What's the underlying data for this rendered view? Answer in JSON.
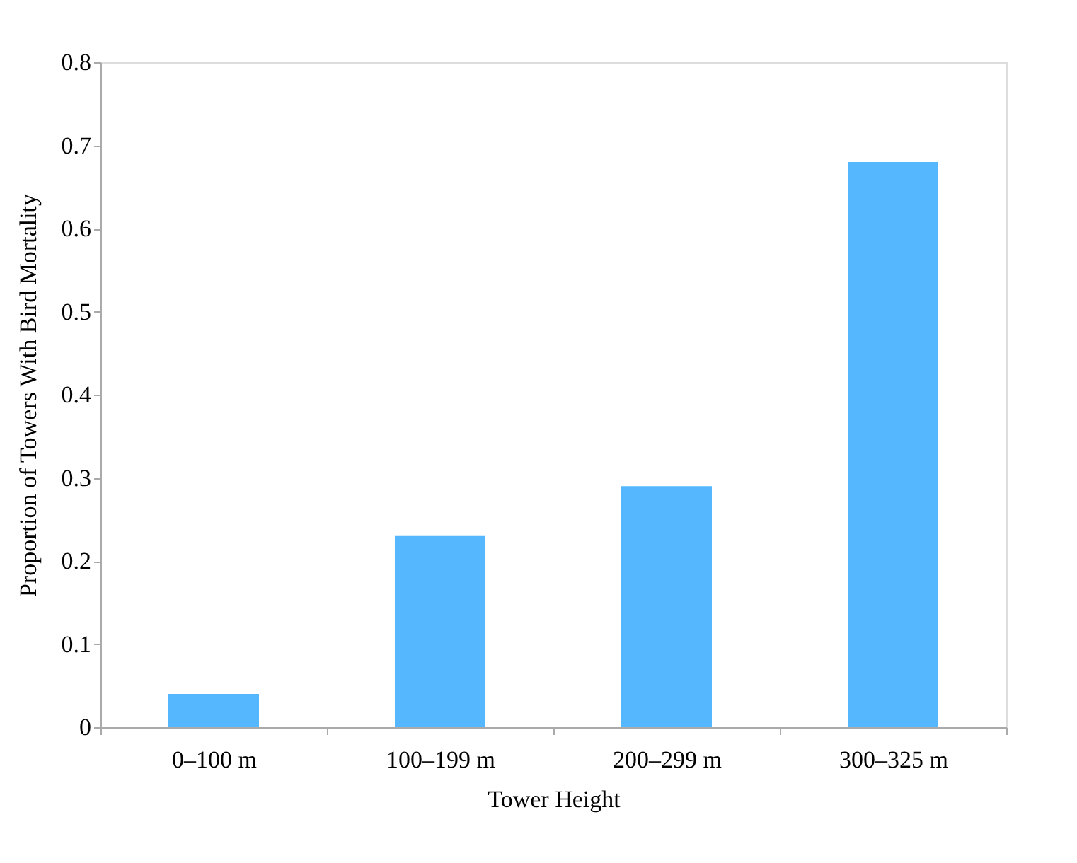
{
  "chart_data": {
    "type": "bar",
    "xlabel": "Tower Height",
    "ylabel": "Proportion of Towers With Bird Mortality",
    "categories": [
      "0–100 m",
      "100–199 m",
      "200–299 m",
      "300–325 m"
    ],
    "values": [
      0.04,
      0.23,
      0.29,
      0.68
    ],
    "color": "#55b8ff",
    "ylim": [
      0,
      0.8
    ],
    "yticks": [
      0,
      0.1,
      0.2,
      0.3,
      0.4,
      0.5,
      0.6,
      0.7,
      0.8
    ],
    "grid": false
  }
}
